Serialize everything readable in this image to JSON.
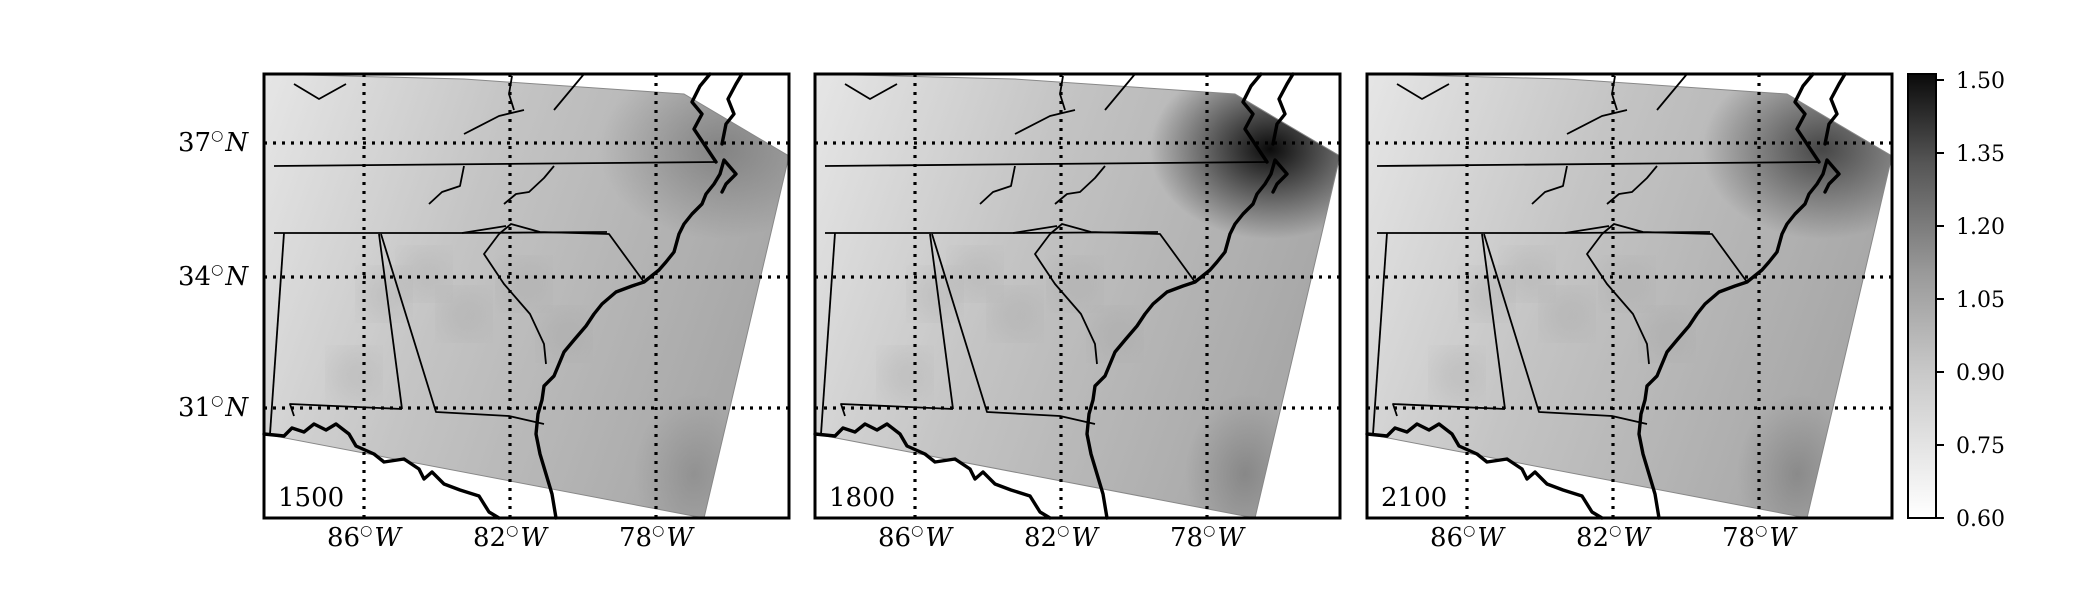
{
  "panels": [
    {
      "time_label": "1500",
      "hotspot": 0.55,
      "swdark": 0.45
    },
    {
      "time_label": "1800",
      "hotspot": 1.0,
      "swdark": 0.65
    },
    {
      "time_label": "2100",
      "hotspot": 0.8,
      "swdark": 0.6
    }
  ],
  "axes": {
    "lat_labels": [
      {
        "deg": "37",
        "sym": "N"
      },
      {
        "deg": "34",
        "sym": "N"
      },
      {
        "deg": "31",
        "sym": "N"
      }
    ],
    "lon_labels": [
      {
        "deg": "86",
        "sym": "W"
      },
      {
        "deg": "82",
        "sym": "W"
      },
      {
        "deg": "78",
        "sym": "W"
      }
    ]
  },
  "colorbar": {
    "ticks": [
      "1.50",
      "1.35",
      "1.20",
      "1.05",
      "0.90",
      "0.75",
      "0.60"
    ],
    "colormap": "Greys",
    "vmin": 0.6,
    "vmax": 1.5
  }
}
